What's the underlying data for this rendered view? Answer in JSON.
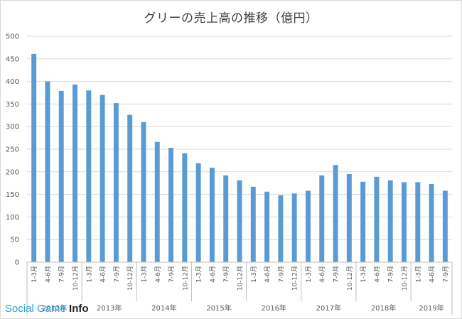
{
  "chart_data": {
    "type": "bar",
    "title": "グリーの売上高の推移（億円）",
    "xlabel": "",
    "ylabel": "",
    "ylim": [
      0,
      500
    ],
    "yticks": [
      0,
      50,
      100,
      150,
      200,
      250,
      300,
      350,
      400,
      450,
      500
    ],
    "grid": true,
    "bar_color": "#5b9bd5",
    "categories": [
      "1-3月",
      "4-6月",
      "7-9月",
      "10-12月",
      "1-3月",
      "4-6月",
      "7-9月",
      "10-12月",
      "1-3月",
      "4-6月",
      "7-9月",
      "10-12月",
      "1-3月",
      "4-6月",
      "7-9月",
      "10-12月",
      "1-3月",
      "4-6月",
      "7-9月",
      "10-12月",
      "1-3月",
      "4-6月",
      "7-9月",
      "10-12月",
      "1-3月",
      "4-6月",
      "7-9月",
      "10-12月",
      "1-3月",
      "4-6月",
      "7-9月"
    ],
    "values": [
      461,
      400,
      379,
      393,
      380,
      370,
      352,
      326,
      310,
      266,
      253,
      241,
      219,
      209,
      192,
      181,
      167,
      156,
      148,
      152,
      158,
      192,
      215,
      195,
      178,
      189,
      181,
      177,
      177,
      173,
      158
    ],
    "year_groups": [
      {
        "label": "2012年",
        "start": 0,
        "count": 4
      },
      {
        "label": "2013年",
        "start": 4,
        "count": 4
      },
      {
        "label": "2014年",
        "start": 8,
        "count": 4
      },
      {
        "label": "2015年",
        "start": 12,
        "count": 4
      },
      {
        "label": "2016年",
        "start": 16,
        "count": 4
      },
      {
        "label": "2017年",
        "start": 20,
        "count": 4
      },
      {
        "label": "2018年",
        "start": 24,
        "count": 4
      },
      {
        "label": "2019年",
        "start": 28,
        "count": 3
      }
    ]
  },
  "watermark": {
    "part1": "Social Game ",
    "part2": "Info"
  }
}
